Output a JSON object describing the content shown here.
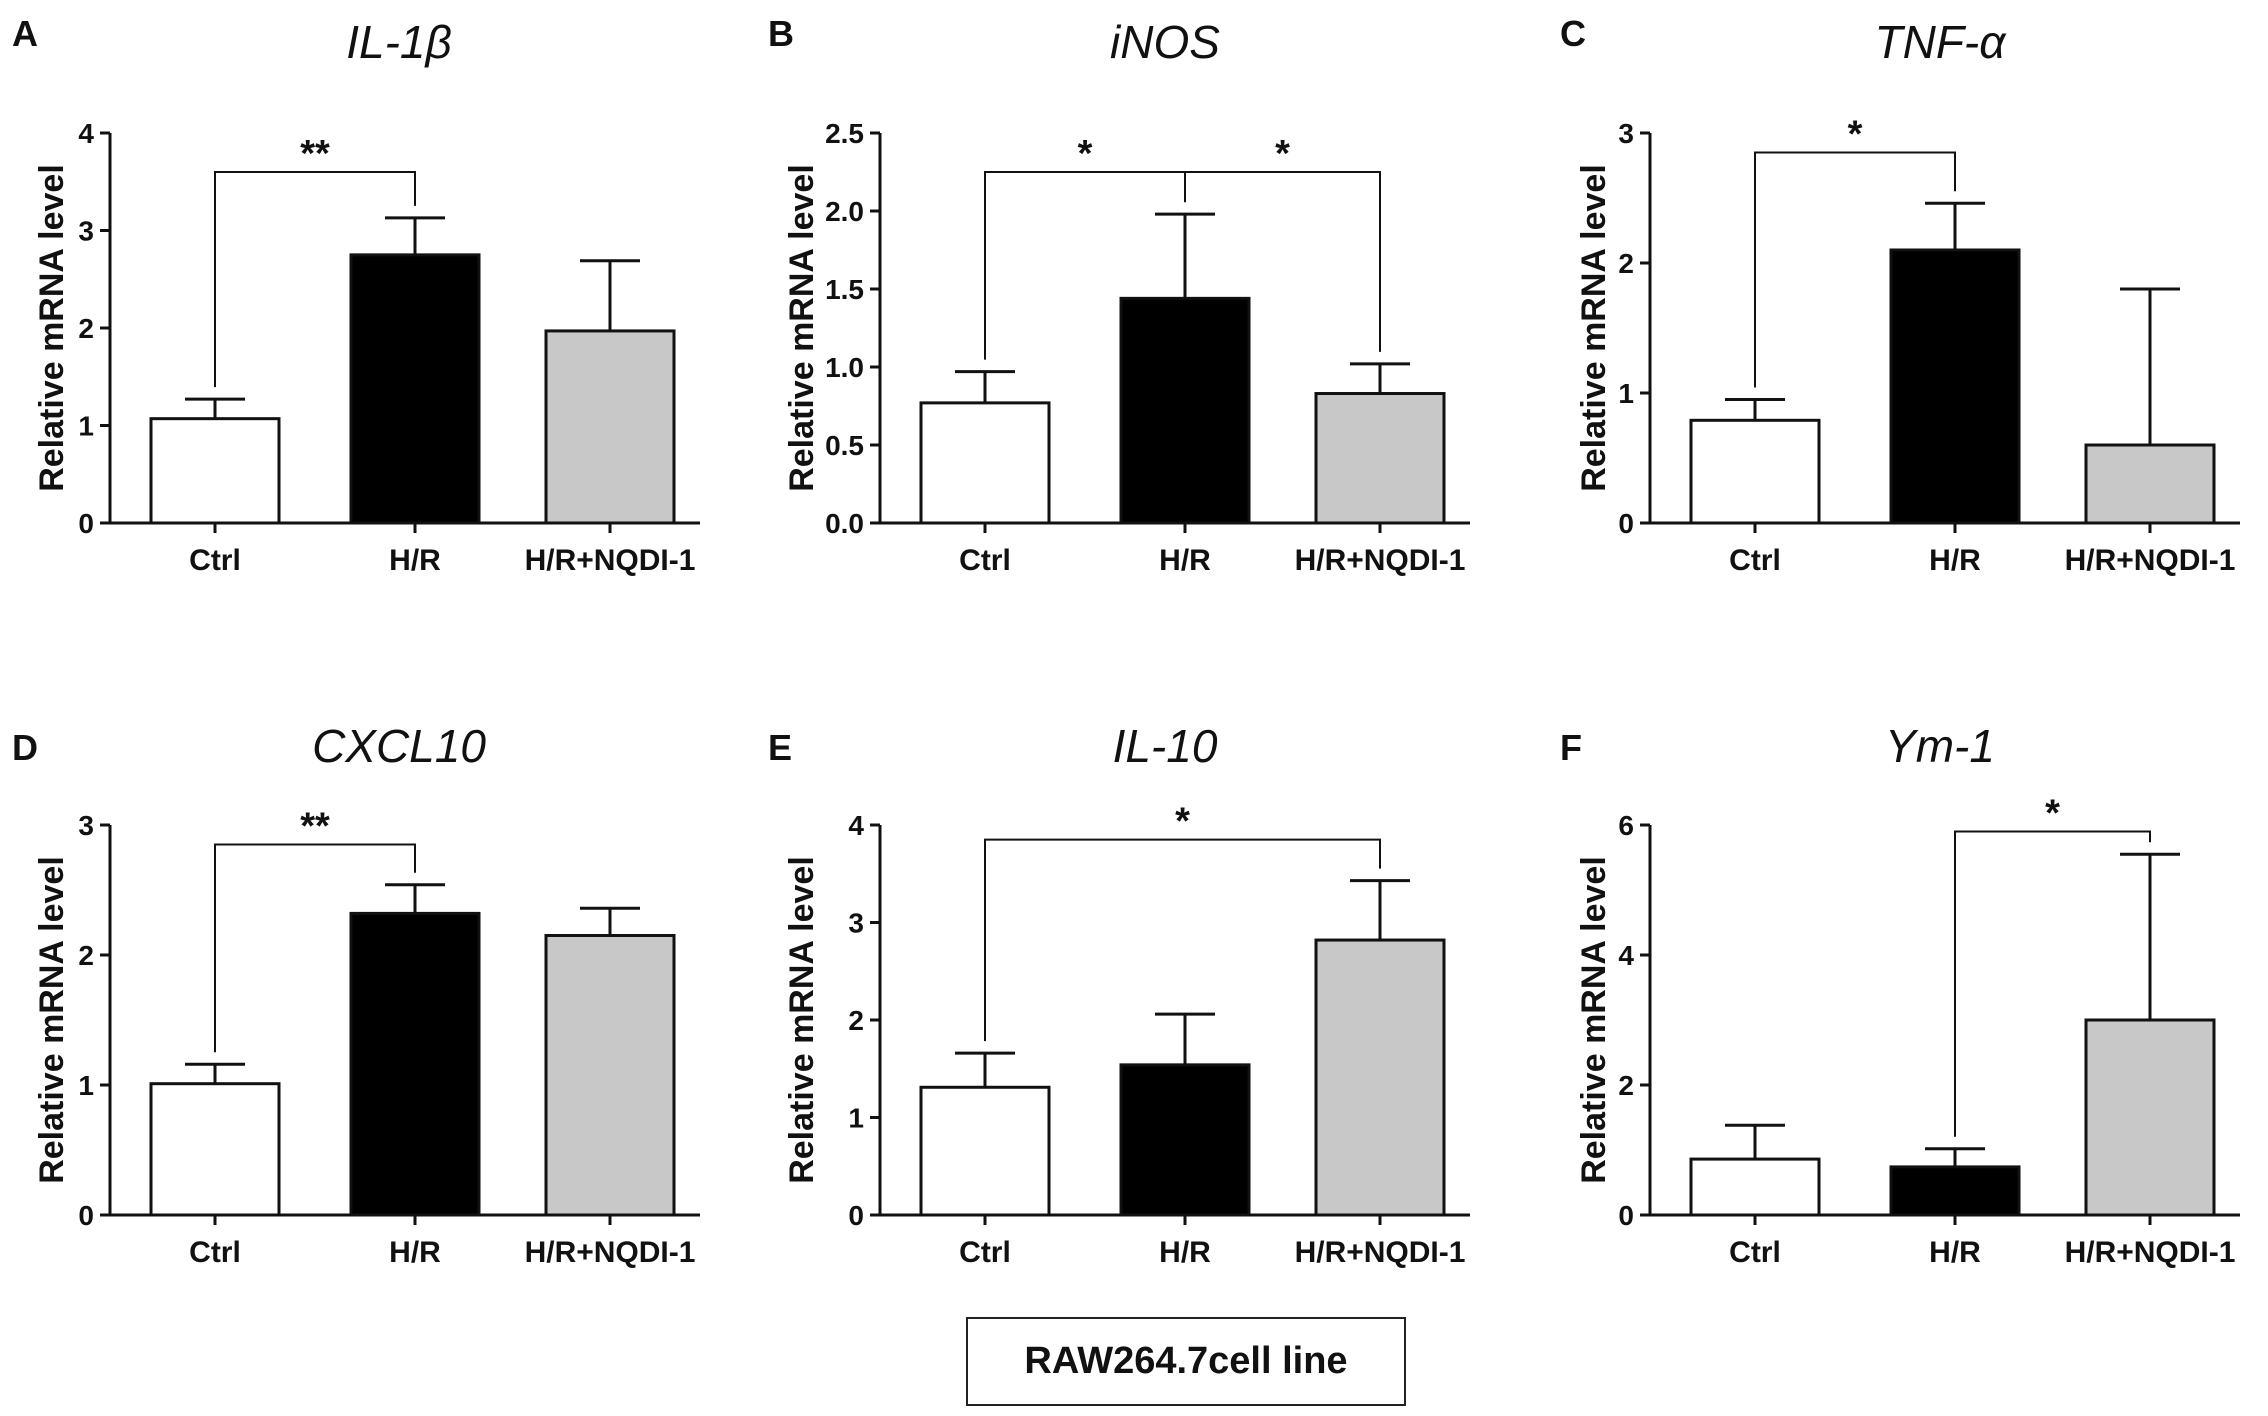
{
  "figure": {
    "caption": "RAW264.7cell line",
    "colors": {
      "Ctrl": "#ffffff",
      "H/R": "#000000",
      "H/R+NQDI-1": "#c8c8c8",
      "stroke": "#111111"
    }
  },
  "chart_data": [
    {
      "type": "bar",
      "panel": "A",
      "title": "IL-1β",
      "xlabel": "",
      "ylabel": "Relative mRNA level",
      "categories": [
        "Ctrl",
        "H/R",
        "H/R+NQDI-1"
      ],
      "values": [
        1.07,
        2.75,
        1.97
      ],
      "errors": [
        0.2,
        0.38,
        0.72
      ],
      "ylim": [
        0,
        4
      ],
      "yticks": [
        "0",
        "1",
        "2",
        "3",
        "4"
      ],
      "significance": [
        {
          "from": 0,
          "to": 1,
          "label": "**",
          "y": 3.6
        }
      ]
    },
    {
      "type": "bar",
      "panel": "B",
      "title": "iNOS",
      "xlabel": "",
      "ylabel": "Relative mRNA level",
      "categories": [
        "Ctrl",
        "H/R",
        "H/R+NQDI-1"
      ],
      "values": [
        0.77,
        1.44,
        0.83
      ],
      "errors": [
        0.2,
        0.54,
        0.19
      ],
      "ylim": [
        0,
        2.5
      ],
      "yticks": [
        "0.0",
        "0.5",
        "1.0",
        "1.5",
        "2.0",
        "2.5"
      ],
      "significance": [
        {
          "from": 0,
          "to": 1,
          "label": "*",
          "y": 2.25
        },
        {
          "from": 1,
          "to": 2,
          "label": "*",
          "y": 2.25
        }
      ]
    },
    {
      "type": "bar",
      "panel": "C",
      "title": "TNF-α",
      "xlabel": "",
      "ylabel": "Relative mRNA level",
      "categories": [
        "Ctrl",
        "H/R",
        "H/R+NQDI-1"
      ],
      "values": [
        0.79,
        2.1,
        0.6
      ],
      "errors": [
        0.16,
        0.36,
        1.2
      ],
      "ylim": [
        0,
        3
      ],
      "yticks": [
        "0",
        "1",
        "2",
        "3"
      ],
      "significance": [
        {
          "from": 0,
          "to": 1,
          "label": "*",
          "y": 2.85
        }
      ]
    },
    {
      "type": "bar",
      "panel": "D",
      "title": "CXCL10",
      "xlabel": "",
      "ylabel": "Relative mRNA level",
      "categories": [
        "Ctrl",
        "H/R",
        "H/R+NQDI-1"
      ],
      "values": [
        1.01,
        2.32,
        2.15
      ],
      "errors": [
        0.15,
        0.22,
        0.21
      ],
      "ylim": [
        0,
        3
      ],
      "yticks": [
        "0",
        "1",
        "2",
        "3"
      ],
      "significance": [
        {
          "from": 0,
          "to": 1,
          "label": "**",
          "y": 2.85
        }
      ]
    },
    {
      "type": "bar",
      "panel": "E",
      "title": "IL-10",
      "xlabel": "",
      "ylabel": "Relative mRNA level",
      "categories": [
        "Ctrl",
        "H/R",
        "H/R+NQDI-1"
      ],
      "values": [
        1.31,
        1.54,
        2.82
      ],
      "errors": [
        0.35,
        0.52,
        0.61
      ],
      "ylim": [
        0,
        4
      ],
      "yticks": [
        "0",
        "1",
        "2",
        "3",
        "4"
      ],
      "significance": [
        {
          "from": 0,
          "to": 2,
          "label": "*",
          "y": 3.85
        }
      ]
    },
    {
      "type": "bar",
      "panel": "F",
      "title": "Ym-1",
      "xlabel": "",
      "ylabel": "Relative mRNA level",
      "categories": [
        "Ctrl",
        "H/R",
        "H/R+NQDI-1"
      ],
      "values": [
        0.86,
        0.74,
        3.0
      ],
      "errors": [
        0.52,
        0.28,
        2.55
      ],
      "ylim": [
        0,
        6
      ],
      "yticks": [
        "0",
        "2",
        "4",
        "6"
      ],
      "significance": [
        {
          "from": 1,
          "to": 2,
          "label": "*",
          "y": 5.9
        }
      ]
    }
  ]
}
